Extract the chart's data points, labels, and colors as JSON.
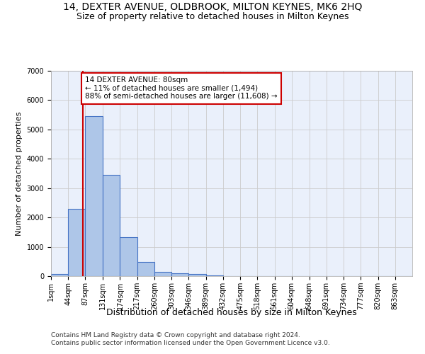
{
  "title": "14, DEXTER AVENUE, OLDBROOK, MILTON KEYNES, MK6 2HQ",
  "subtitle": "Size of property relative to detached houses in Milton Keynes",
  "xlabel": "Distribution of detached houses by size in Milton Keynes",
  "ylabel": "Number of detached properties",
  "footer_line1": "Contains HM Land Registry data © Crown copyright and database right 2024.",
  "footer_line2": "Contains public sector information licensed under the Open Government Licence v3.0.",
  "bin_labels": [
    "1sqm",
    "44sqm",
    "87sqm",
    "131sqm",
    "174sqm",
    "217sqm",
    "260sqm",
    "303sqm",
    "346sqm",
    "389sqm",
    "432sqm",
    "475sqm",
    "518sqm",
    "561sqm",
    "604sqm",
    "648sqm",
    "691sqm",
    "734sqm",
    "777sqm",
    "820sqm",
    "863sqm"
  ],
  "bin_edges": [
    1,
    44,
    87,
    131,
    174,
    217,
    260,
    303,
    346,
    389,
    432,
    475,
    518,
    561,
    604,
    648,
    691,
    734,
    777,
    820,
    863,
    906
  ],
  "bar_values": [
    80,
    2300,
    5450,
    3450,
    1320,
    480,
    155,
    90,
    65,
    30,
    10,
    5,
    2,
    1,
    1,
    0,
    0,
    0,
    0,
    0,
    0
  ],
  "bar_color": "#aec6e8",
  "bar_edge_color": "#4472c4",
  "bar_edge_width": 0.8,
  "property_size": 80,
  "property_line_color": "#cc0000",
  "annotation_line1": "14 DEXTER AVENUE: 80sqm",
  "annotation_line2": "← 11% of detached houses are smaller (1,494)",
  "annotation_line3": "88% of semi-detached houses are larger (11,608) →",
  "annotation_box_color": "#ffffff",
  "annotation_box_edge": "#cc0000",
  "annotation_box_edge_width": 1.5,
  "ylim": [
    0,
    7000
  ],
  "yticks": [
    0,
    1000,
    2000,
    3000,
    4000,
    5000,
    6000,
    7000
  ],
  "grid_color": "#cccccc",
  "bg_color": "#eaf0fb",
  "fig_bg_color": "#ffffff",
  "title_fontsize": 10,
  "subtitle_fontsize": 9,
  "xlabel_fontsize": 9,
  "ylabel_fontsize": 8,
  "tick_fontsize": 7,
  "annotation_fontsize": 7.5,
  "footer_fontsize": 6.5
}
